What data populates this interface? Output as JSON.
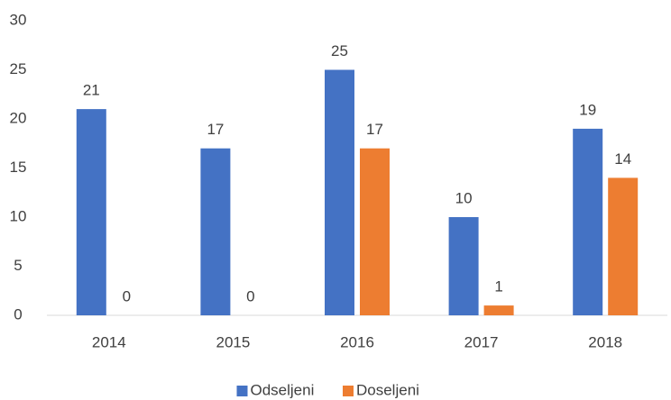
{
  "chart_data": {
    "type": "bar",
    "categories": [
      "2014",
      "2015",
      "2016",
      "2017",
      "2018"
    ],
    "series": [
      {
        "name": "Odseljeni",
        "color": "#4472c4",
        "values": [
          21,
          17,
          25,
          10,
          19
        ]
      },
      {
        "name": "Doseljeni",
        "color": "#ed7d31",
        "values": [
          0,
          0,
          17,
          1,
          14
        ]
      }
    ],
    "ylim": [
      0,
      30
    ],
    "yticks": [
      0,
      5,
      10,
      15,
      20,
      25,
      30
    ],
    "grid": false,
    "data_labels": true,
    "legend": "bottom"
  }
}
